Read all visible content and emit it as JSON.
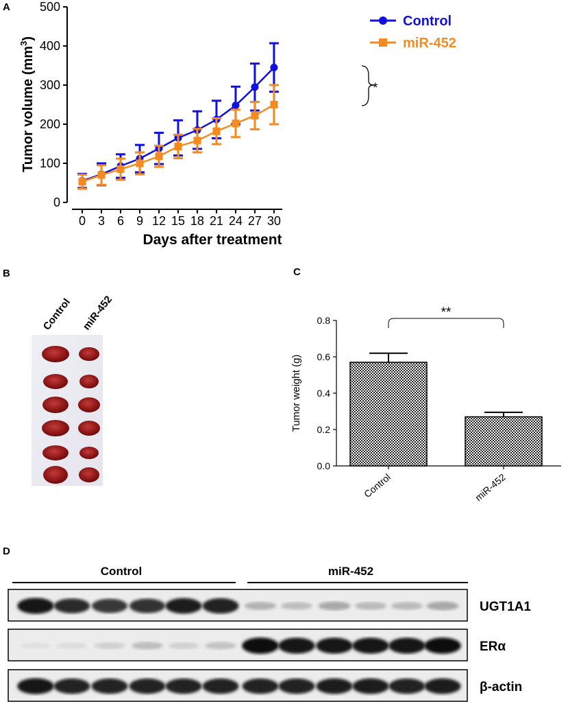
{
  "panel_labels": {
    "a": "A",
    "b": "B",
    "c": "C",
    "d": "D"
  },
  "colors": {
    "control": "#1010e0",
    "mir452": "#f58a1f"
  },
  "chart_data": [
    {
      "type": "line",
      "panel": "A",
      "xlabel": "Days after treatment",
      "ylabel_main": "Tumor volume (mm",
      "ylabel_sup": "3",
      "ylabel_end": ")",
      "x": [
        0,
        3,
        6,
        9,
        12,
        15,
        18,
        21,
        24,
        27,
        30
      ],
      "x_ticks": [
        "0",
        "3",
        "6",
        "9",
        "12",
        "15",
        "18",
        "21",
        "24",
        "27",
        "30"
      ],
      "y_ticks": [
        "0",
        "100",
        "200",
        "300",
        "400",
        "500"
      ],
      "ylim": [
        0,
        500
      ],
      "significance": "*",
      "series": [
        {
          "name": "Control",
          "marker": "circle",
          "values": [
            55,
            72,
            93,
            112,
            138,
            165,
            185,
            212,
            248,
            295,
            345
          ],
          "errors": [
            18,
            28,
            30,
            35,
            40,
            45,
            48,
            48,
            48,
            60,
            62
          ]
        },
        {
          "name": "miR-452",
          "marker": "square",
          "values": [
            53,
            70,
            85,
            100,
            118,
            143,
            158,
            182,
            202,
            222,
            250
          ],
          "errors": [
            18,
            25,
            27,
            28,
            27,
            30,
            30,
            33,
            35,
            35,
            50
          ]
        }
      ]
    },
    {
      "type": "bar",
      "panel": "C",
      "categories": [
        "Control",
        "miR-452"
      ],
      "values": [
        0.57,
        0.27
      ],
      "errors": [
        0.05,
        0.025
      ],
      "ylabel": "Tumor weight (g)",
      "y_ticks": [
        "0.0",
        "0.2",
        "0.4",
        "0.6",
        "0.8"
      ],
      "ylim": [
        0,
        0.8
      ],
      "significance": "**"
    }
  ],
  "photo": {
    "columns": [
      "Control",
      "miR-452"
    ]
  },
  "blot": {
    "groups": [
      "Control",
      "miR-452"
    ],
    "rows": [
      {
        "label": "UGT1A1",
        "intensity": [
          0.95,
          0.85,
          0.8,
          0.82,
          0.92,
          0.9,
          0.25,
          0.2,
          0.3,
          0.22,
          0.22,
          0.3
        ]
      },
      {
        "label": "ERα",
        "intensity": [
          0.05,
          0.07,
          0.12,
          0.2,
          0.12,
          0.18,
          0.98,
          0.95,
          0.95,
          0.95,
          0.95,
          0.97
        ]
      },
      {
        "label": "β-actin",
        "intensity": [
          0.95,
          0.9,
          0.9,
          0.9,
          0.9,
          0.9,
          0.9,
          0.9,
          0.92,
          0.92,
          0.9,
          0.92
        ]
      }
    ]
  }
}
